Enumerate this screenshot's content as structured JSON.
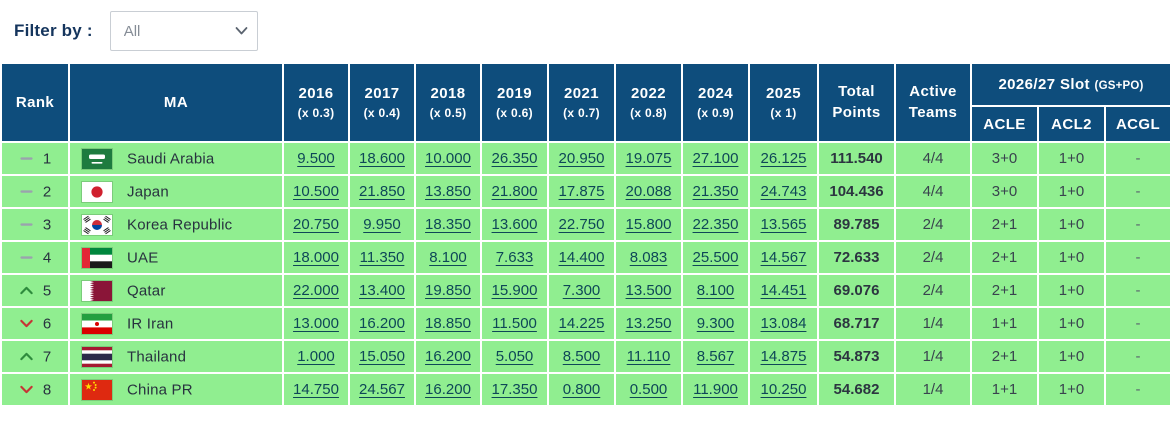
{
  "filter": {
    "label": "Filter by :",
    "selected": "All"
  },
  "colors": {
    "header_bg": "#0E4D7C",
    "row_bg": "#90EE90",
    "link": "#0E4757",
    "rank_up": "#2E8B3D",
    "rank_down": "#C63535",
    "rank_same": "#9AA3AD"
  },
  "table": {
    "rank_label": "Rank",
    "ma_label": "MA",
    "total_label": "Total Points",
    "active_label": "Active Teams",
    "slot_label": "2026/27 Slot",
    "slot_sub": "(GS+PO)",
    "slot_columns": [
      "ACLE",
      "ACL2",
      "ACGL"
    ],
    "years": [
      {
        "year": "2016",
        "mult": "(x 0.3)"
      },
      {
        "year": "2017",
        "mult": "(x 0.4)"
      },
      {
        "year": "2018",
        "mult": "(x 0.5)"
      },
      {
        "year": "2019",
        "mult": "(x 0.6)"
      },
      {
        "year": "2021",
        "mult": "(x 0.7)"
      },
      {
        "year": "2022",
        "mult": "(x 0.8)"
      },
      {
        "year": "2024",
        "mult": "(x 0.9)"
      },
      {
        "year": "2025",
        "mult": "(x 1)"
      }
    ],
    "rows": [
      {
        "movement": "same",
        "rank": "1",
        "country": "Saudi Arabia",
        "flag": "saudi-arabia",
        "values": [
          "9.500",
          "18.600",
          "10.000",
          "26.350",
          "20.950",
          "19.075",
          "27.100",
          "26.125"
        ],
        "total": "111.540",
        "active_teams": "4/4",
        "acle": "3+0",
        "acl2": "1+0",
        "acgl": "-"
      },
      {
        "movement": "same",
        "rank": "2",
        "country": "Japan",
        "flag": "japan",
        "values": [
          "10.500",
          "21.850",
          "13.850",
          "21.800",
          "17.875",
          "20.088",
          "21.350",
          "24.743"
        ],
        "total": "104.436",
        "active_teams": "4/4",
        "acle": "3+0",
        "acl2": "1+0",
        "acgl": "-"
      },
      {
        "movement": "same",
        "rank": "3",
        "country": "Korea Republic",
        "flag": "korea-republic",
        "values": [
          "20.750",
          "9.950",
          "18.350",
          "13.600",
          "22.750",
          "15.800",
          "22.350",
          "13.565"
        ],
        "total": "89.785",
        "active_teams": "2/4",
        "acle": "2+1",
        "acl2": "1+0",
        "acgl": "-"
      },
      {
        "movement": "same",
        "rank": "4",
        "country": "UAE",
        "flag": "uae",
        "values": [
          "18.000",
          "11.350",
          "8.100",
          "7.633",
          "14.400",
          "8.083",
          "25.500",
          "14.567"
        ],
        "total": "72.633",
        "active_teams": "2/4",
        "acle": "2+1",
        "acl2": "1+0",
        "acgl": "-"
      },
      {
        "movement": "up",
        "rank": "5",
        "country": "Qatar",
        "flag": "qatar",
        "values": [
          "22.000",
          "13.400",
          "19.850",
          "15.900",
          "7.300",
          "13.500",
          "8.100",
          "14.451"
        ],
        "total": "69.076",
        "active_teams": "2/4",
        "acle": "2+1",
        "acl2": "1+0",
        "acgl": "-"
      },
      {
        "movement": "down",
        "rank": "6",
        "country": "IR Iran",
        "flag": "ir-iran",
        "values": [
          "13.000",
          "16.200",
          "18.850",
          "11.500",
          "14.225",
          "13.250",
          "9.300",
          "13.084"
        ],
        "total": "68.717",
        "active_teams": "1/4",
        "acle": "1+1",
        "acl2": "1+0",
        "acgl": "-"
      },
      {
        "movement": "up",
        "rank": "7",
        "country": "Thailand",
        "flag": "thailand",
        "values": [
          "1.000",
          "15.050",
          "16.200",
          "5.050",
          "8.500",
          "11.110",
          "8.567",
          "14.875"
        ],
        "total": "54.873",
        "active_teams": "1/4",
        "acle": "2+1",
        "acl2": "1+0",
        "acgl": "-"
      },
      {
        "movement": "down",
        "rank": "8",
        "country": "China PR",
        "flag": "china-pr",
        "values": [
          "14.750",
          "24.567",
          "16.200",
          "17.350",
          "0.800",
          "0.500",
          "11.900",
          "10.250"
        ],
        "total": "54.682",
        "active_teams": "1/4",
        "acle": "1+1",
        "acl2": "1+0",
        "acgl": "-"
      }
    ]
  }
}
